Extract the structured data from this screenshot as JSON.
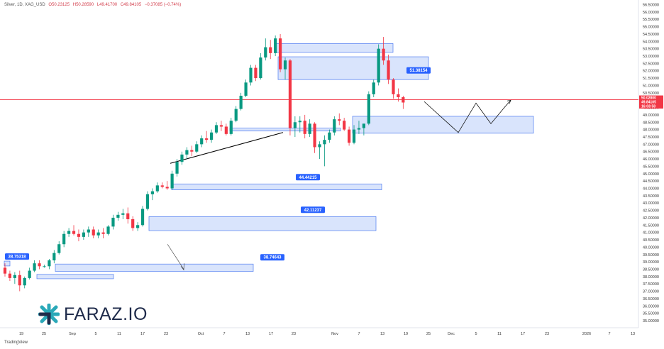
{
  "header": {
    "symbol": "Silver, 1D, XAG_USD",
    "open": "O50.23125",
    "high": "H50.28590",
    "low": "L49.41700",
    "close": "C49.84105",
    "change": "−0.37085 (−0.74%)"
  },
  "footer": {
    "tradingview": "TradingView"
  },
  "logo": {
    "text": "FARAZ.IO"
  },
  "colors": {
    "up": "#089981",
    "down": "#f23645",
    "zone_fill": "#c9d8fb",
    "zone_stroke": "#4f7cf0",
    "tag_bg": "#2962ff",
    "price_line": "#f23645"
  },
  "chart_data": {
    "type": "candlestick",
    "title": "",
    "ylim": [
      35.0,
      56.5
    ],
    "y_ticks": [
      "56.50000",
      "56.00000",
      "55.50000",
      "55.00000",
      "54.50000",
      "54.00000",
      "53.50000",
      "53.00000",
      "52.50000",
      "52.00000",
      "51.50000",
      "51.00000",
      "50.50000",
      "50.00000",
      "49.50000",
      "49.00000",
      "48.50000",
      "48.00000",
      "47.50000",
      "47.00000",
      "46.50000",
      "46.00000",
      "45.50000",
      "45.00000",
      "44.50000",
      "44.00000",
      "43.50000",
      "43.00000",
      "42.50000",
      "42.00000",
      "41.50000",
      "41.00000",
      "40.50000",
      "40.00000",
      "39.50000",
      "39.00000",
      "38.50000",
      "38.00000",
      "37.50000",
      "37.00000",
      "36.50000",
      "36.00000",
      "35.50000",
      "35.00000"
    ],
    "x_ticks": [
      "19",
      "25",
      "Sep",
      "5",
      "11",
      "17",
      "23",
      "Oct",
      "7",
      "13",
      "17",
      "23",
      "Nov",
      "7",
      "13",
      "19",
      "25",
      "Dec",
      "5",
      "11",
      "17",
      "23",
      "2026",
      "7",
      "13"
    ],
    "price_labels": [
      "50.02800",
      "49.84105",
      "16:03:58"
    ],
    "candles": [
      {
        "o": 38.6,
        "h": 38.9,
        "l": 38.0,
        "c": 38.2
      },
      {
        "o": 38.2,
        "h": 38.4,
        "l": 37.7,
        "c": 37.9
      },
      {
        "o": 37.9,
        "h": 38.3,
        "l": 37.5,
        "c": 38.1
      },
      {
        "o": 38.1,
        "h": 38.4,
        "l": 37.0,
        "c": 37.4
      },
      {
        "o": 37.4,
        "h": 38.0,
        "l": 37.2,
        "c": 37.9
      },
      {
        "o": 37.9,
        "h": 38.6,
        "l": 37.8,
        "c": 38.4
      },
      {
        "o": 38.4,
        "h": 39.1,
        "l": 38.3,
        "c": 38.9
      },
      {
        "o": 38.9,
        "h": 39.1,
        "l": 38.5,
        "c": 38.7
      },
      {
        "o": 38.7,
        "h": 38.8,
        "l": 38.6,
        "c": 38.7
      },
      {
        "o": 38.7,
        "h": 39.2,
        "l": 38.5,
        "c": 39.1
      },
      {
        "o": 39.1,
        "h": 39.8,
        "l": 38.9,
        "c": 39.6
      },
      {
        "o": 39.6,
        "h": 40.4,
        "l": 39.5,
        "c": 40.2
      },
      {
        "o": 40.2,
        "h": 41.1,
        "l": 40.0,
        "c": 40.9
      },
      {
        "o": 40.9,
        "h": 41.3,
        "l": 40.7,
        "c": 41.1
      },
      {
        "o": 41.1,
        "h": 41.5,
        "l": 40.8,
        "c": 40.9
      },
      {
        "o": 40.9,
        "h": 41.2,
        "l": 40.4,
        "c": 40.7
      },
      {
        "o": 40.7,
        "h": 41.2,
        "l": 40.5,
        "c": 41.0
      },
      {
        "o": 41.0,
        "h": 41.4,
        "l": 40.7,
        "c": 41.2
      },
      {
        "o": 41.2,
        "h": 41.4,
        "l": 40.6,
        "c": 40.8
      },
      {
        "o": 40.8,
        "h": 41.2,
        "l": 40.6,
        "c": 41.0
      },
      {
        "o": 41.0,
        "h": 41.3,
        "l": 40.6,
        "c": 40.9
      },
      {
        "o": 40.9,
        "h": 41.5,
        "l": 40.8,
        "c": 41.4
      },
      {
        "o": 41.4,
        "h": 42.2,
        "l": 41.2,
        "c": 42.0
      },
      {
        "o": 42.0,
        "h": 42.4,
        "l": 41.8,
        "c": 42.2
      },
      {
        "o": 42.2,
        "h": 42.6,
        "l": 41.9,
        "c": 42.3
      },
      {
        "o": 42.3,
        "h": 42.7,
        "l": 41.6,
        "c": 41.9
      },
      {
        "o": 41.9,
        "h": 42.1,
        "l": 41.1,
        "c": 41.3
      },
      {
        "o": 41.3,
        "h": 41.7,
        "l": 41.1,
        "c": 41.5
      },
      {
        "o": 41.5,
        "h": 42.8,
        "l": 41.4,
        "c": 42.6
      },
      {
        "o": 42.6,
        "h": 43.8,
        "l": 42.5,
        "c": 43.6
      },
      {
        "o": 43.6,
        "h": 44.0,
        "l": 43.2,
        "c": 43.8
      },
      {
        "o": 43.8,
        "h": 44.4,
        "l": 43.7,
        "c": 44.2
      },
      {
        "o": 44.2,
        "h": 44.4,
        "l": 44.0,
        "c": 44.1
      },
      {
        "o": 44.1,
        "h": 44.5,
        "l": 43.9,
        "c": 44.0
      },
      {
        "o": 44.0,
        "h": 45.2,
        "l": 43.9,
        "c": 45.0
      },
      {
        "o": 45.0,
        "h": 46.0,
        "l": 44.8,
        "c": 45.8
      },
      {
        "o": 45.8,
        "h": 46.5,
        "l": 45.6,
        "c": 46.3
      },
      {
        "o": 46.3,
        "h": 46.8,
        "l": 46.0,
        "c": 46.6
      },
      {
        "o": 46.6,
        "h": 46.9,
        "l": 46.2,
        "c": 46.5
      },
      {
        "o": 46.5,
        "h": 47.2,
        "l": 46.4,
        "c": 47.0
      },
      {
        "o": 47.0,
        "h": 47.6,
        "l": 46.8,
        "c": 47.4
      },
      {
        "o": 47.4,
        "h": 47.9,
        "l": 47.1,
        "c": 47.3
      },
      {
        "o": 47.3,
        "h": 48.0,
        "l": 47.1,
        "c": 47.8
      },
      {
        "o": 47.8,
        "h": 48.5,
        "l": 47.7,
        "c": 48.3
      },
      {
        "o": 48.3,
        "h": 48.6,
        "l": 47.9,
        "c": 48.2
      },
      {
        "o": 48.2,
        "h": 48.4,
        "l": 47.6,
        "c": 47.7
      },
      {
        "o": 47.7,
        "h": 48.8,
        "l": 47.6,
        "c": 48.6
      },
      {
        "o": 48.6,
        "h": 49.6,
        "l": 48.5,
        "c": 49.4
      },
      {
        "o": 49.4,
        "h": 50.5,
        "l": 49.3,
        "c": 50.3
      },
      {
        "o": 50.3,
        "h": 51.4,
        "l": 50.2,
        "c": 51.2
      },
      {
        "o": 51.2,
        "h": 52.4,
        "l": 51.0,
        "c": 52.2
      },
      {
        "o": 52.2,
        "h": 52.4,
        "l": 51.3,
        "c": 51.5
      },
      {
        "o": 51.5,
        "h": 53.2,
        "l": 51.4,
        "c": 52.9
      },
      {
        "o": 52.9,
        "h": 54.2,
        "l": 52.7,
        "c": 53.6
      },
      {
        "o": 53.6,
        "h": 54.1,
        "l": 52.8,
        "c": 53.2
      },
      {
        "o": 53.2,
        "h": 54.4,
        "l": 53.0,
        "c": 54.2
      },
      {
        "o": 54.2,
        "h": 54.5,
        "l": 51.9,
        "c": 52.1
      },
      {
        "o": 52.1,
        "h": 52.9,
        "l": 51.4,
        "c": 52.7
      },
      {
        "o": 52.7,
        "h": 52.8,
        "l": 47.6,
        "c": 48.1
      },
      {
        "o": 48.1,
        "h": 48.9,
        "l": 47.5,
        "c": 48.5
      },
      {
        "o": 48.5,
        "h": 48.9,
        "l": 47.8,
        "c": 48.6
      },
      {
        "o": 48.6,
        "h": 49.0,
        "l": 47.4,
        "c": 47.7
      },
      {
        "o": 47.7,
        "h": 48.7,
        "l": 47.5,
        "c": 48.4
      },
      {
        "o": 48.4,
        "h": 48.5,
        "l": 46.4,
        "c": 46.8
      },
      {
        "o": 46.8,
        "h": 47.2,
        "l": 46.0,
        "c": 47.0
      },
      {
        "o": 47.0,
        "h": 47.6,
        "l": 45.5,
        "c": 47.3
      },
      {
        "o": 47.3,
        "h": 48.0,
        "l": 47.1,
        "c": 47.8
      },
      {
        "o": 47.8,
        "h": 48.9,
        "l": 47.6,
        "c": 48.7
      },
      {
        "o": 48.7,
        "h": 49.1,
        "l": 48.3,
        "c": 48.6
      },
      {
        "o": 48.6,
        "h": 48.8,
        "l": 47.9,
        "c": 48.0
      },
      {
        "o": 48.0,
        "h": 48.2,
        "l": 46.9,
        "c": 47.1
      },
      {
        "o": 47.1,
        "h": 48.3,
        "l": 47.0,
        "c": 48.0
      },
      {
        "o": 48.0,
        "h": 48.6,
        "l": 47.7,
        "c": 48.1
      },
      {
        "o": 48.1,
        "h": 48.4,
        "l": 47.6,
        "c": 48.4
      },
      {
        "o": 48.4,
        "h": 50.6,
        "l": 48.3,
        "c": 50.4
      },
      {
        "o": 50.4,
        "h": 51.4,
        "l": 50.2,
        "c": 51.2
      },
      {
        "o": 51.2,
        "h": 53.8,
        "l": 51.0,
        "c": 53.5
      },
      {
        "o": 53.5,
        "h": 54.3,
        "l": 52.4,
        "c": 52.7
      },
      {
        "o": 52.7,
        "h": 53.1,
        "l": 51.1,
        "c": 51.4
      },
      {
        "o": 51.4,
        "h": 51.5,
        "l": 50.1,
        "c": 50.4
      },
      {
        "o": 50.4,
        "h": 50.8,
        "l": 49.9,
        "c": 50.2
      },
      {
        "o": 50.2,
        "h": 50.3,
        "l": 49.4,
        "c": 49.84
      }
    ],
    "zones": [
      {
        "x0": 6,
        "x1": 14,
        "y0": 38.72,
        "y1": 39.05,
        "label": "38.75318"
      },
      {
        "x0": 52,
        "x1": 160,
        "y0": 37.85,
        "y1": 38.15
      },
      {
        "x0": 78,
        "x1": 357,
        "y0": 38.35,
        "y1": 38.85,
        "label": "38.74643"
      },
      {
        "x0": 210,
        "x1": 530,
        "y0": 41.12,
        "y1": 42.08,
        "label": "42.11237"
      },
      {
        "x0": 242,
        "x1": 538,
        "y0": 43.9,
        "y1": 44.3,
        "label": "44.44215"
      },
      {
        "x0": 324,
        "x1": 480,
        "y0": 47.9,
        "y1": 48.1
      },
      {
        "x0": 388,
        "x1": 554,
        "y0": 53.25,
        "y1": 53.85
      },
      {
        "x0": 392,
        "x1": 604,
        "y0": 51.4,
        "y1": 52.95,
        "label": "51.38154"
      },
      {
        "x0": 497,
        "x1": 752,
        "y0": 47.75,
        "y1": 48.9
      }
    ],
    "current_price": 50.03
  }
}
